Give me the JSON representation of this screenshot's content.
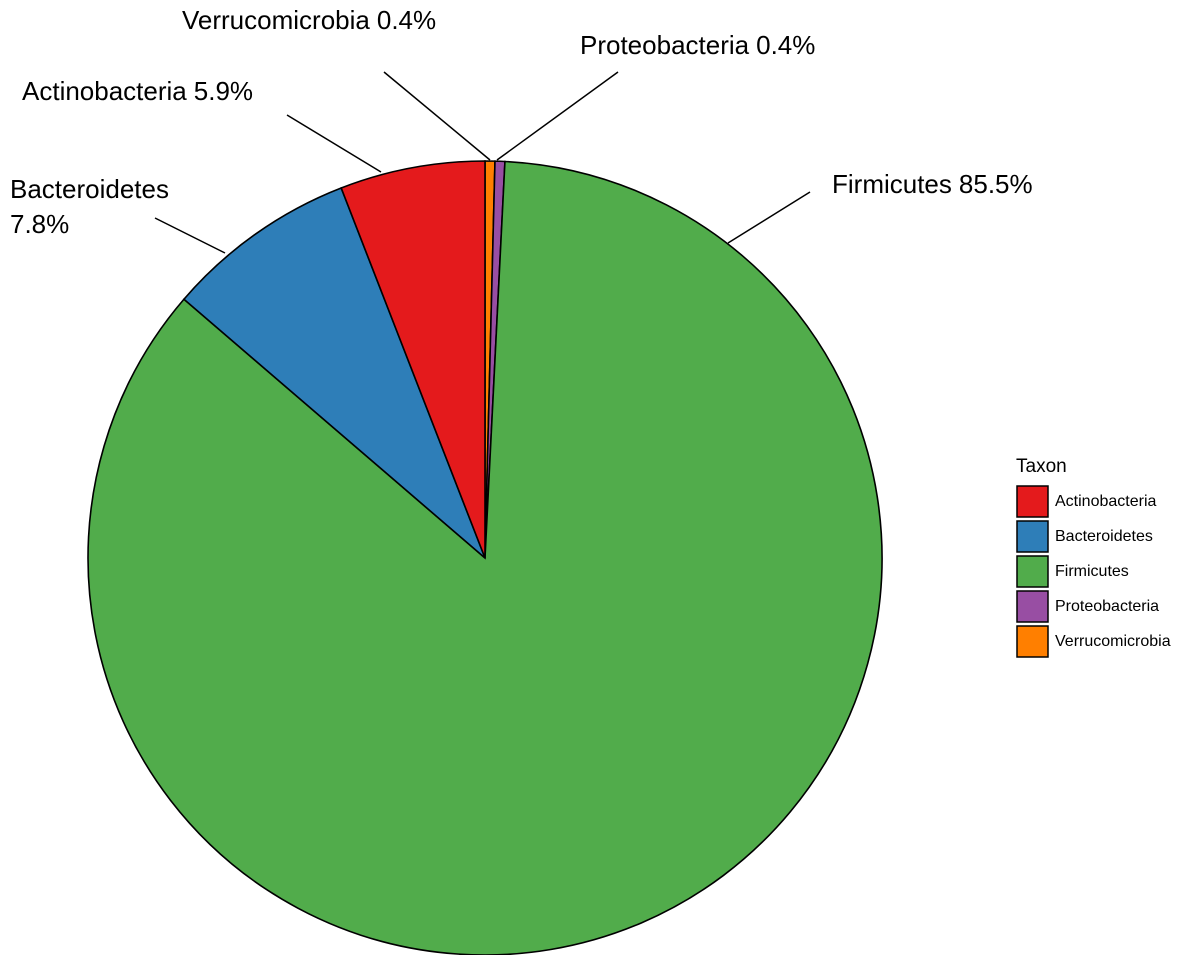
{
  "chart_data": {
    "type": "pie",
    "categories": [
      "Actinobacteria",
      "Bacteroidetes",
      "Firmicutes",
      "Proteobacteria",
      "Verrucomicrobia"
    ],
    "values": [
      5.9,
      7.8,
      85.5,
      0.4,
      0.4
    ],
    "value_labels": [
      "5.9%",
      "7.8%",
      "85.5%",
      "0.4%",
      "0.4%"
    ],
    "colors": [
      "#e41a1c",
      "#2e7eb8",
      "#51ac4b",
      "#984ea3",
      "#ff7f00"
    ],
    "legend_title": "Taxon",
    "legend": "right"
  }
}
